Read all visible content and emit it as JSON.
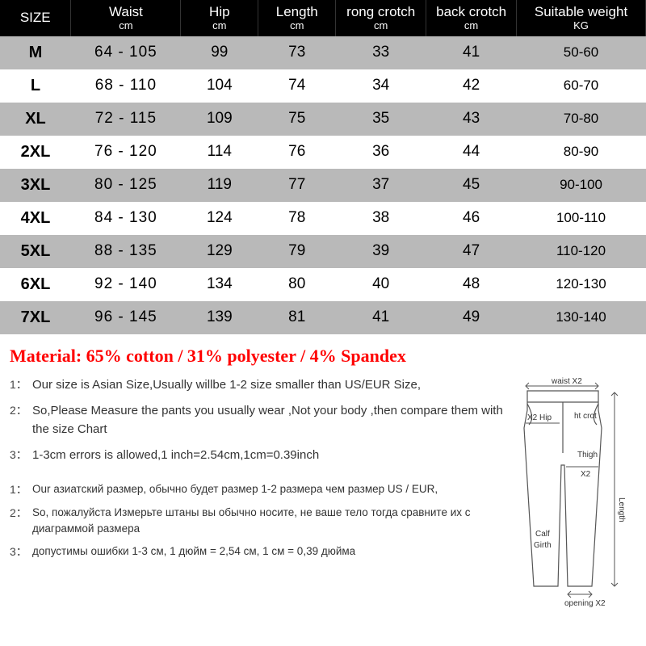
{
  "table": {
    "header_bg": "#000000",
    "header_fg": "#ffffff",
    "row_odd_bg": "#b9b9b9",
    "row_even_bg": "#ffffff",
    "columns": [
      {
        "label": "SIZE",
        "unit": ""
      },
      {
        "label": "Waist",
        "unit": "cm"
      },
      {
        "label": "Hip",
        "unit": "cm"
      },
      {
        "label": "Length",
        "unit": "cm"
      },
      {
        "label": "rong crotch",
        "unit": "cm"
      },
      {
        "label": "back crotch",
        "unit": "cm"
      },
      {
        "label": "Suitable weight",
        "unit": "KG"
      }
    ],
    "rows": [
      {
        "size": "M",
        "waist": "64  -  105",
        "hip": "99",
        "length": "73",
        "rong": "33",
        "back": "41",
        "weight": "50-60"
      },
      {
        "size": "L",
        "waist": "68  -  110",
        "hip": "104",
        "length": "74",
        "rong": "34",
        "back": "42",
        "weight": "60-70"
      },
      {
        "size": "XL",
        "waist": "72  -  115",
        "hip": "109",
        "length": "75",
        "rong": "35",
        "back": "43",
        "weight": "70-80"
      },
      {
        "size": "2XL",
        "waist": "76  -  120",
        "hip": "114",
        "length": "76",
        "rong": "36",
        "back": "44",
        "weight": "80-90"
      },
      {
        "size": "3XL",
        "waist": "80  -  125",
        "hip": "119",
        "length": "77",
        "rong": "37",
        "back": "45",
        "weight": "90-100"
      },
      {
        "size": "4XL",
        "waist": "84  -  130",
        "hip": "124",
        "length": "78",
        "rong": "38",
        "back": "46",
        "weight": "100-110"
      },
      {
        "size": "5XL",
        "waist": "88  -  135",
        "hip": "129",
        "length": "79",
        "rong": "39",
        "back": "47",
        "weight": "110-120"
      },
      {
        "size": "6XL",
        "waist": "92  -  140",
        "hip": "134",
        "length": "80",
        "rong": "40",
        "back": "48",
        "weight": "120-130"
      },
      {
        "size": "7XL",
        "waist": "96  -  145",
        "hip": "139",
        "length": "81",
        "rong": "41",
        "back": "49",
        "weight": "130-140"
      }
    ]
  },
  "material": {
    "text": "Material: 65% cotton / 31% polyester / 4% Spandex",
    "color": "#ff0000"
  },
  "notes_en": [
    {
      "num": "1：",
      "text": "Our size is Asian Size,Usually willbe 1-2 size smaller than US/EUR Size,"
    },
    {
      "num": "2：",
      "text": "So,Please Measure the pants you usually wear ,Not your body ,then compare them with the size Chart"
    },
    {
      "num": "3：",
      "text": "1-3cm errors is allowed,1 inch=2.54cm,1cm=0.39inch"
    }
  ],
  "notes_ru": [
    {
      "num": "1：",
      "text": "Our азиатский размер, обычно будет размер 1-2 размера чем размер US / EUR,"
    },
    {
      "num": "2：",
      "text": "So, пожалуйста Измерьте штаны вы обычно носите, не ваше тело тогда сравните их с диаграммой размера"
    },
    {
      "num": "3：",
      "text": "допустимы ошибки 1-3 см, 1 дюйм = 2,54 см, 1 см = 0,39 дюйма"
    }
  ],
  "diagram": {
    "labels": {
      "waist": "waist X2",
      "hip": "X2 Hip",
      "crotch": "ht crot",
      "thigh": "Thigh",
      "thigh_x2": "X2",
      "calf": "Calf",
      "girth": "Girth",
      "length": "Length",
      "opening": "opening X2"
    },
    "stroke": "#555555"
  }
}
